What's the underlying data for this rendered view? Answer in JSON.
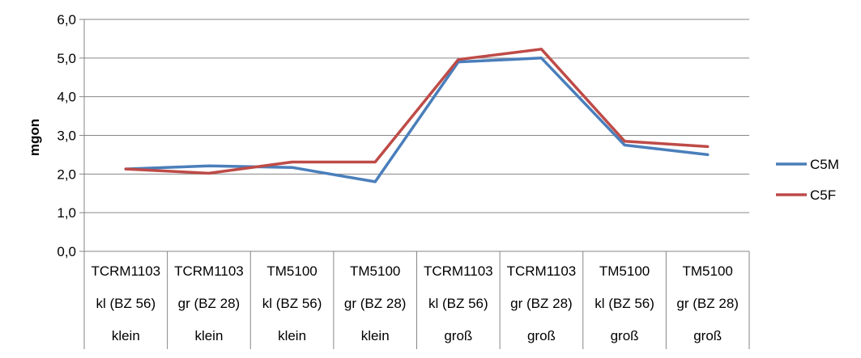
{
  "chart_data": {
    "type": "line",
    "ylabel": "mgon",
    "ylim": [
      0,
      6
    ],
    "y_ticks": [
      "0,0",
      "1,0",
      "2,0",
      "3,0",
      "4,0",
      "5,0",
      "6,0"
    ],
    "grid": true,
    "legend_position": "right",
    "categories": [
      [
        "TCRM1103",
        "kl (BZ 56)",
        "klein"
      ],
      [
        "TCRM1103",
        "gr (BZ 28)",
        "klein"
      ],
      [
        "TM5100",
        "kl (BZ 56)",
        "klein"
      ],
      [
        "TM5100",
        "gr (BZ 28)",
        "klein"
      ],
      [
        "TCRM1103",
        "kl (BZ 56)",
        "groß"
      ],
      [
        "TCRM1103",
        "gr (BZ 28)",
        "groß"
      ],
      [
        "TM5100",
        "kl (BZ 56)",
        "groß"
      ],
      [
        "TM5100",
        "gr (BZ 28)",
        "groß"
      ]
    ],
    "series": [
      {
        "name": "C5M",
        "color": "#4a7ebb",
        "values": [
          2.13,
          2.21,
          2.17,
          1.8,
          4.9,
          5.0,
          2.75,
          2.5
        ]
      },
      {
        "name": "C5F",
        "color": "#be4b48",
        "values": [
          2.13,
          2.02,
          2.31,
          2.31,
          4.96,
          5.23,
          2.85,
          2.71
        ]
      }
    ]
  }
}
